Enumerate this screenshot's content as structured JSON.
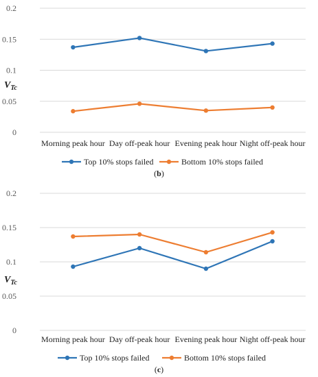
{
  "chart_data": [
    {
      "type": "line",
      "caption": "b",
      "ylabel_main": "V",
      "ylabel_sub": "Tc",
      "ylim": [
        0,
        0.2
      ],
      "yticks": [
        "0",
        "0.05",
        "0.1",
        "0.15",
        "0.2"
      ],
      "grid": true,
      "legend_position": "bottom",
      "categories": [
        "Morning peak hour",
        "Day off-peak hour",
        "Evening peak hour",
        "Night off-peak hour"
      ],
      "series": [
        {
          "name": "Top 10% stops failed",
          "color": "#2e75b6",
          "values": [
            0.137,
            0.152,
            0.131,
            0.143
          ]
        },
        {
          "name": "Bottom 10% stops failed",
          "color": "#ed7d31",
          "values": [
            0.034,
            0.046,
            0.035,
            0.04
          ]
        }
      ]
    },
    {
      "type": "line",
      "caption": "c",
      "ylabel_main": "V",
      "ylabel_sub": "Tc",
      "ylim": [
        0,
        0.2
      ],
      "yticks": [
        "0",
        "0.05",
        "0.1",
        "0.15",
        "0.2"
      ],
      "grid": true,
      "legend_position": "bottom",
      "categories": [
        "Morning peak hour",
        "Day off-peak hour",
        "Evening peak hour",
        "Night off-peak hour"
      ],
      "series": [
        {
          "name": "Top 10% stops failed",
          "color": "#2e75b6",
          "values": [
            0.093,
            0.12,
            0.09,
            0.13
          ]
        },
        {
          "name": "Bottom 10% stops failed",
          "color": "#ed7d31",
          "values": [
            0.137,
            0.14,
            0.114,
            0.143
          ]
        }
      ]
    }
  ]
}
